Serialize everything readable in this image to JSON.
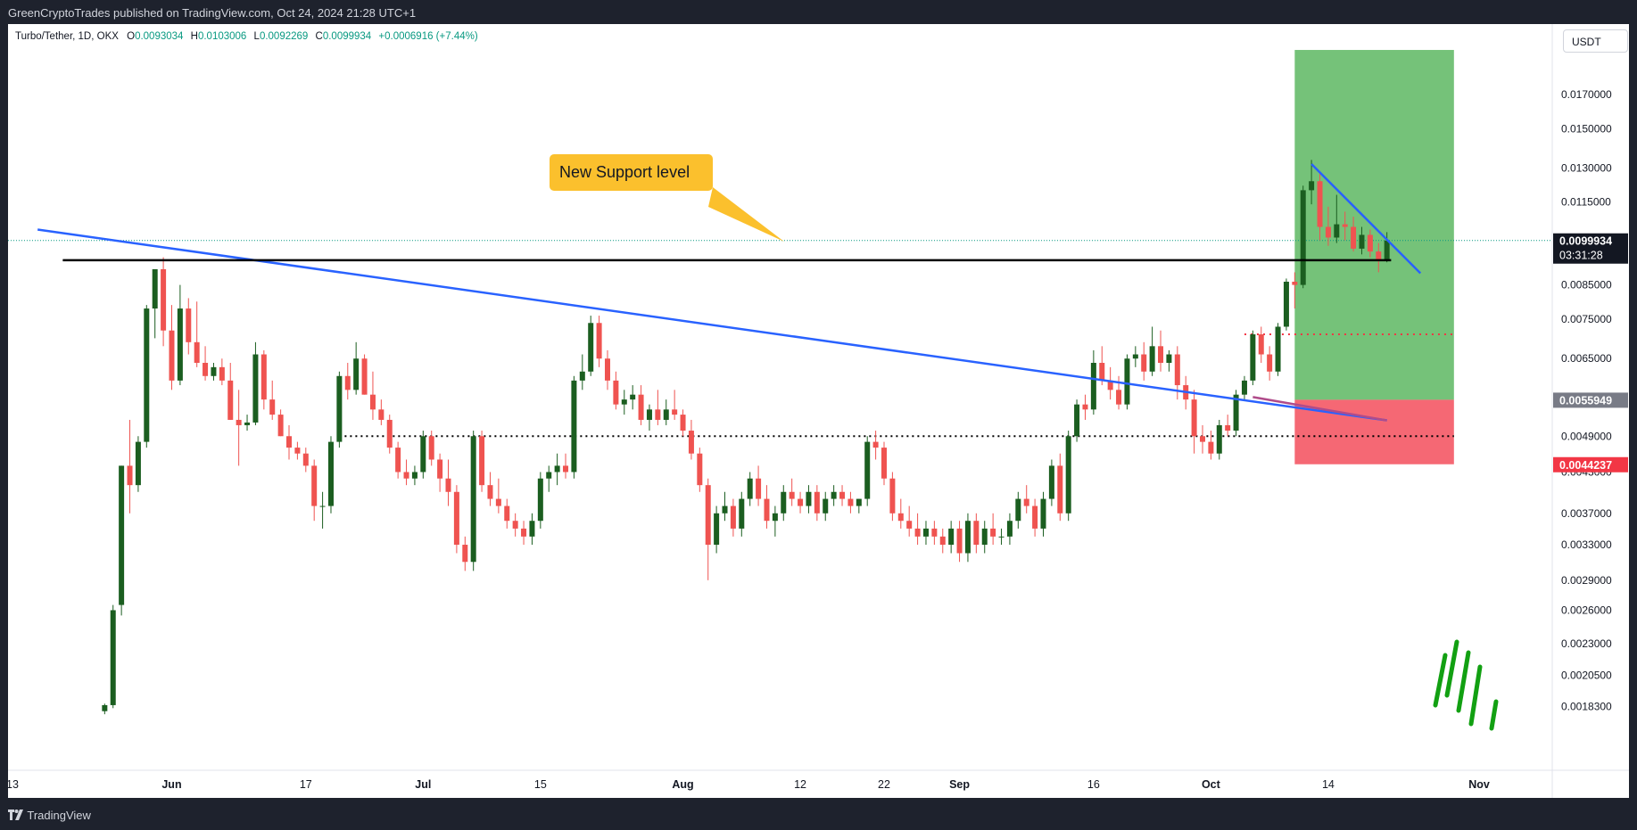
{
  "header": {
    "publisher_line": "GreenCryptoTrades published on TradingView.com, Oct 24, 2024 21:28 UTC+1"
  },
  "footer": {
    "brand": "TradingView",
    "logo_icon": "tradingview-logo-icon"
  },
  "legend": {
    "symbol": "Turbo/Tether, 1D, OKX",
    "open_label": "O",
    "open": "0.0093034",
    "high_label": "H",
    "high": "0.0103006",
    "low_label": "L",
    "low": "0.0092269",
    "close_label": "C",
    "close": "0.0099934",
    "change": "+0.0006916 (+7.44%)"
  },
  "currency_button": "USDT",
  "colors": {
    "up": "#1b5e20",
    "down": "#ef5350",
    "trendline": "#2962ff",
    "support": "#000000",
    "target_zone": "#66bb6a",
    "stop_zone": "#f23645",
    "callout": "#fbc02d",
    "last_price_bg": "#131722",
    "stop_bg": "#f23645",
    "entry_bg": "#787b86"
  },
  "chart_data": {
    "type": "candlestick",
    "symbol": "Turbo/Tether",
    "interval": "1D",
    "exchange": "OKX",
    "scale": "log",
    "ylim": [
      0.0016,
      0.021
    ],
    "y_ticks": [
      "0.0170000",
      "0.0150000",
      "0.0130000",
      "0.0115000",
      "0.0085000",
      "0.0075000",
      "0.0065000",
      "0.0049000",
      "0.0043000",
      "0.0037000",
      "0.0033000",
      "0.0029000",
      "0.0026000",
      "0.0023000",
      "0.0020500",
      "0.0018300"
    ],
    "x_ticks": [
      "13",
      "Jun",
      "17",
      "Jul",
      "15",
      "Aug",
      "12",
      "22",
      "Sep",
      "16",
      "Oct",
      "14",
      "Nov"
    ],
    "x_tick_days": [
      0,
      19,
      35,
      49,
      63,
      80,
      94,
      104,
      113,
      129,
      143,
      157,
      175
    ],
    "candles": [
      [
        11,
        0.0018,
        0.00185,
        0.00178,
        0.00184
      ],
      [
        12,
        0.00184,
        0.00265,
        0.00182,
        0.0026
      ],
      [
        13,
        0.00265,
        0.0044,
        0.00255,
        0.0044
      ],
      [
        14,
        0.0044,
        0.0052,
        0.0037,
        0.0041
      ],
      [
        15,
        0.0041,
        0.0049,
        0.004,
        0.0048
      ],
      [
        16,
        0.0048,
        0.0079,
        0.0047,
        0.0078
      ],
      [
        17,
        0.0078,
        0.009,
        0.007,
        0.009
      ],
      [
        18,
        0.009,
        0.0094,
        0.0068,
        0.0072
      ],
      [
        19,
        0.0072,
        0.0079,
        0.0058,
        0.006
      ],
      [
        20,
        0.006,
        0.0085,
        0.0059,
        0.0078
      ],
      [
        21,
        0.0078,
        0.0081,
        0.0066,
        0.0069
      ],
      [
        22,
        0.0069,
        0.008,
        0.0063,
        0.0064
      ],
      [
        23,
        0.0064,
        0.0068,
        0.006,
        0.0061
      ],
      [
        24,
        0.0061,
        0.0064,
        0.006,
        0.0063
      ],
      [
        25,
        0.0063,
        0.0065,
        0.0059,
        0.006
      ],
      [
        26,
        0.006,
        0.0064,
        0.0052,
        0.0052
      ],
      [
        27,
        0.0052,
        0.0058,
        0.0044,
        0.0051
      ],
      [
        28,
        0.0051,
        0.0053,
        0.005,
        0.00515
      ],
      [
        29,
        0.00515,
        0.0069,
        0.0051,
        0.0066
      ],
      [
        30,
        0.0066,
        0.0067,
        0.0054,
        0.0056
      ],
      [
        31,
        0.0056,
        0.006,
        0.0052,
        0.0053
      ],
      [
        32,
        0.0053,
        0.0054,
        0.0049,
        0.0049
      ],
      [
        33,
        0.0049,
        0.0051,
        0.0045,
        0.0047
      ],
      [
        34,
        0.0047,
        0.0048,
        0.0045,
        0.0046
      ],
      [
        35,
        0.0046,
        0.0047,
        0.0043,
        0.0044
      ],
      [
        36,
        0.0044,
        0.0045,
        0.0036,
        0.0038
      ],
      [
        37,
        0.0038,
        0.004,
        0.0035,
        0.0038
      ],
      [
        38,
        0.0038,
        0.0049,
        0.0037,
        0.0048
      ],
      [
        39,
        0.0048,
        0.0062,
        0.0047,
        0.0061
      ],
      [
        40,
        0.0061,
        0.0064,
        0.0056,
        0.0058
      ],
      [
        41,
        0.0058,
        0.0069,
        0.0057,
        0.0065
      ],
      [
        42,
        0.0065,
        0.0066,
        0.0057,
        0.0057
      ],
      [
        43,
        0.0057,
        0.0062,
        0.0052,
        0.0054
      ],
      [
        44,
        0.0054,
        0.0056,
        0.0051,
        0.0052
      ],
      [
        45,
        0.0052,
        0.0053,
        0.0046,
        0.0047
      ],
      [
        46,
        0.0047,
        0.0048,
        0.0042,
        0.0043
      ],
      [
        47,
        0.0043,
        0.0045,
        0.0041,
        0.0042
      ],
      [
        48,
        0.0042,
        0.0044,
        0.0041,
        0.0043
      ],
      [
        49,
        0.0043,
        0.005,
        0.0042,
        0.0049
      ],
      [
        50,
        0.0049,
        0.005,
        0.0044,
        0.0045
      ],
      [
        51,
        0.0045,
        0.0046,
        0.004,
        0.0042
      ],
      [
        52,
        0.0042,
        0.0045,
        0.0038,
        0.004
      ],
      [
        53,
        0.004,
        0.0041,
        0.0032,
        0.0033
      ],
      [
        54,
        0.0033,
        0.0034,
        0.003,
        0.0031
      ],
      [
        55,
        0.0031,
        0.005,
        0.003,
        0.0049
      ],
      [
        56,
        0.0049,
        0.005,
        0.004,
        0.0041
      ],
      [
        57,
        0.0041,
        0.0043,
        0.0038,
        0.0039
      ],
      [
        58,
        0.0039,
        0.0042,
        0.0037,
        0.0038
      ],
      [
        59,
        0.0038,
        0.0039,
        0.0035,
        0.0036
      ],
      [
        60,
        0.0036,
        0.0037,
        0.0034,
        0.0035
      ],
      [
        61,
        0.0035,
        0.0036,
        0.0033,
        0.0034
      ],
      [
        62,
        0.0034,
        0.0037,
        0.0033,
        0.0036
      ],
      [
        63,
        0.0036,
        0.0043,
        0.0035,
        0.0042
      ],
      [
        64,
        0.0042,
        0.0044,
        0.004,
        0.0043
      ],
      [
        65,
        0.0043,
        0.0046,
        0.0041,
        0.0044
      ],
      [
        66,
        0.0044,
        0.0046,
        0.0042,
        0.0043
      ],
      [
        67,
        0.0043,
        0.0061,
        0.0042,
        0.006
      ],
      [
        68,
        0.006,
        0.0066,
        0.0058,
        0.0062
      ],
      [
        69,
        0.0062,
        0.0076,
        0.0061,
        0.0074
      ],
      [
        70,
        0.0074,
        0.0076,
        0.0063,
        0.0065
      ],
      [
        71,
        0.0065,
        0.0067,
        0.0058,
        0.006
      ],
      [
        72,
        0.006,
        0.0062,
        0.0054,
        0.0055
      ],
      [
        73,
        0.0055,
        0.0058,
        0.0053,
        0.0056
      ],
      [
        74,
        0.0056,
        0.0059,
        0.0054,
        0.0057
      ],
      [
        75,
        0.0057,
        0.0059,
        0.0051,
        0.0052
      ],
      [
        76,
        0.0052,
        0.0055,
        0.005,
        0.0054
      ],
      [
        77,
        0.0054,
        0.0058,
        0.0051,
        0.0052
      ],
      [
        78,
        0.0052,
        0.0056,
        0.0051,
        0.0054
      ],
      [
        79,
        0.0054,
        0.0058,
        0.0052,
        0.0053
      ],
      [
        80,
        0.0053,
        0.0054,
        0.0049,
        0.005
      ],
      [
        81,
        0.005,
        0.0052,
        0.0045,
        0.0046
      ],
      [
        82,
        0.0046,
        0.0047,
        0.004,
        0.0041
      ],
      [
        83,
        0.0041,
        0.0042,
        0.0029,
        0.0033
      ],
      [
        84,
        0.0033,
        0.0038,
        0.0032,
        0.0037
      ],
      [
        85,
        0.0037,
        0.004,
        0.0036,
        0.0038
      ],
      [
        86,
        0.0038,
        0.0039,
        0.0034,
        0.0035
      ],
      [
        87,
        0.0035,
        0.004,
        0.0034,
        0.0039
      ],
      [
        88,
        0.0039,
        0.0043,
        0.0038,
        0.0042
      ],
      [
        89,
        0.0042,
        0.0044,
        0.0038,
        0.0039
      ],
      [
        90,
        0.0039,
        0.0041,
        0.0035,
        0.0036
      ],
      [
        91,
        0.0036,
        0.0038,
        0.0034,
        0.0037
      ],
      [
        92,
        0.0037,
        0.0041,
        0.0036,
        0.004
      ],
      [
        93,
        0.004,
        0.0042,
        0.0038,
        0.0039
      ],
      [
        94,
        0.0039,
        0.004,
        0.0037,
        0.0038
      ],
      [
        95,
        0.0038,
        0.0041,
        0.0037,
        0.004
      ],
      [
        96,
        0.004,
        0.0041,
        0.0036,
        0.0037
      ],
      [
        97,
        0.0037,
        0.004,
        0.0036,
        0.0039
      ],
      [
        98,
        0.0039,
        0.0041,
        0.0038,
        0.004
      ],
      [
        99,
        0.004,
        0.0041,
        0.0038,
        0.0039
      ],
      [
        100,
        0.0039,
        0.004,
        0.0037,
        0.0038
      ],
      [
        101,
        0.0038,
        0.0039,
        0.0037,
        0.0039
      ],
      [
        102,
        0.0039,
        0.0049,
        0.0038,
        0.0048
      ],
      [
        103,
        0.0048,
        0.005,
        0.0045,
        0.0047
      ],
      [
        104,
        0.0047,
        0.0048,
        0.0041,
        0.0042
      ],
      [
        105,
        0.0042,
        0.0043,
        0.0036,
        0.0037
      ],
      [
        106,
        0.0037,
        0.0039,
        0.0035,
        0.0036
      ],
      [
        107,
        0.0036,
        0.0038,
        0.0034,
        0.0035
      ],
      [
        108,
        0.0035,
        0.0037,
        0.0033,
        0.0034
      ],
      [
        109,
        0.0034,
        0.0036,
        0.0033,
        0.0035
      ],
      [
        110,
        0.0035,
        0.0036,
        0.0033,
        0.0034
      ],
      [
        111,
        0.0034,
        0.0035,
        0.0032,
        0.0033
      ],
      [
        112,
        0.0033,
        0.0036,
        0.0032,
        0.0035
      ],
      [
        113,
        0.0035,
        0.0036,
        0.0031,
        0.0032
      ],
      [
        114,
        0.0032,
        0.0037,
        0.0031,
        0.0036
      ],
      [
        115,
        0.0036,
        0.0037,
        0.0032,
        0.0033
      ],
      [
        116,
        0.0033,
        0.0036,
        0.0032,
        0.0035
      ],
      [
        117,
        0.0035,
        0.0037,
        0.0033,
        0.0034
      ],
      [
        118,
        0.0034,
        0.0035,
        0.0033,
        0.0034
      ],
      [
        119,
        0.0034,
        0.0037,
        0.0033,
        0.0036
      ],
      [
        120,
        0.0036,
        0.004,
        0.0035,
        0.0039
      ],
      [
        121,
        0.0039,
        0.0041,
        0.0037,
        0.0038
      ],
      [
        122,
        0.0038,
        0.0039,
        0.0034,
        0.0035
      ],
      [
        123,
        0.0035,
        0.004,
        0.0034,
        0.0039
      ],
      [
        124,
        0.0039,
        0.0045,
        0.0038,
        0.0044
      ],
      [
        125,
        0.0044,
        0.0046,
        0.0036,
        0.0037
      ],
      [
        126,
        0.0037,
        0.005,
        0.0036,
        0.0049
      ],
      [
        127,
        0.0049,
        0.0056,
        0.0048,
        0.0055
      ],
      [
        128,
        0.0055,
        0.0057,
        0.0052,
        0.0054
      ],
      [
        129,
        0.0054,
        0.0067,
        0.0053,
        0.0064
      ],
      [
        130,
        0.0064,
        0.0068,
        0.0059,
        0.006
      ],
      [
        131,
        0.006,
        0.0063,
        0.0056,
        0.0058
      ],
      [
        132,
        0.0058,
        0.0061,
        0.0054,
        0.0055
      ],
      [
        133,
        0.0055,
        0.0066,
        0.0054,
        0.0065
      ],
      [
        134,
        0.0065,
        0.0068,
        0.0063,
        0.0066
      ],
      [
        135,
        0.0066,
        0.0069,
        0.006,
        0.0062
      ],
      [
        136,
        0.0062,
        0.0073,
        0.0061,
        0.0068
      ],
      [
        137,
        0.0068,
        0.0072,
        0.0062,
        0.0064
      ],
      [
        138,
        0.0064,
        0.0067,
        0.0062,
        0.0066
      ],
      [
        139,
        0.0066,
        0.0068,
        0.0056,
        0.0059
      ],
      [
        140,
        0.0059,
        0.0061,
        0.0054,
        0.0056
      ],
      [
        141,
        0.0056,
        0.0058,
        0.0046,
        0.0049
      ],
      [
        142,
        0.0049,
        0.0051,
        0.0046,
        0.0048
      ],
      [
        143,
        0.0048,
        0.005,
        0.0045,
        0.0046
      ],
      [
        144,
        0.0046,
        0.0052,
        0.0045,
        0.0051
      ],
      [
        145,
        0.0051,
        0.0053,
        0.0049,
        0.005
      ],
      [
        146,
        0.005,
        0.0058,
        0.0049,
        0.0057
      ],
      [
        147,
        0.0057,
        0.0061,
        0.0056,
        0.006
      ],
      [
        148,
        0.006,
        0.0072,
        0.0059,
        0.0071
      ],
      [
        149,
        0.0071,
        0.0073,
        0.0064,
        0.0066
      ],
      [
        150,
        0.0066,
        0.0068,
        0.006,
        0.0062
      ],
      [
        151,
        0.0062,
        0.0074,
        0.0061,
        0.0073
      ],
      [
        152,
        0.0073,
        0.0087,
        0.0072,
        0.0086
      ],
      [
        153,
        0.0086,
        0.0089,
        0.0078,
        0.0085
      ],
      [
        154,
        0.0085,
        0.0122,
        0.0084,
        0.012
      ],
      [
        155,
        0.012,
        0.0134,
        0.0114,
        0.0124
      ],
      [
        156,
        0.0124,
        0.0128,
        0.01,
        0.0105
      ],
      [
        157,
        0.0105,
        0.0113,
        0.0098,
        0.0101
      ],
      [
        158,
        0.0101,
        0.0118,
        0.0099,
        0.0106
      ],
      [
        159,
        0.0106,
        0.0111,
        0.01,
        0.0105
      ],
      [
        160,
        0.0105,
        0.0109,
        0.0096,
        0.0097
      ],
      [
        161,
        0.0097,
        0.0105,
        0.0095,
        0.0102
      ],
      [
        162,
        0.0102,
        0.0104,
        0.0094,
        0.0096
      ],
      [
        163,
        0.0096,
        0.0099,
        0.0089,
        0.0093
      ],
      [
        164,
        0.0093,
        0.0103,
        0.00923,
        0.00999
      ]
    ],
    "drawings": {
      "support_line": {
        "price": 0.0093,
        "label": "New Support level"
      },
      "descending_trendline": {
        "from": [
          3,
          0.0104
        ],
        "to": [
          164,
          0.00519
        ]
      },
      "short_trendline": {
        "from": [
          155,
          0.0132
        ],
        "to": [
          168,
          0.00887
        ]
      },
      "dotted_level_black": {
        "price": 0.0049,
        "from_day": 39,
        "to_day": 172
      },
      "dotted_level_red": {
        "price": 0.0071,
        "from_day": 147,
        "to_day": 172
      },
      "long_position": {
        "entry": 0.0055949,
        "target": 0.02,
        "stop": 0.0044237,
        "from_day": 153,
        "to_day": 172
      }
    },
    "price_labels": {
      "last_price": "0.0099934",
      "countdown": "03:31:28",
      "entry": "0.0055949",
      "stop": "0.0044237"
    }
  }
}
